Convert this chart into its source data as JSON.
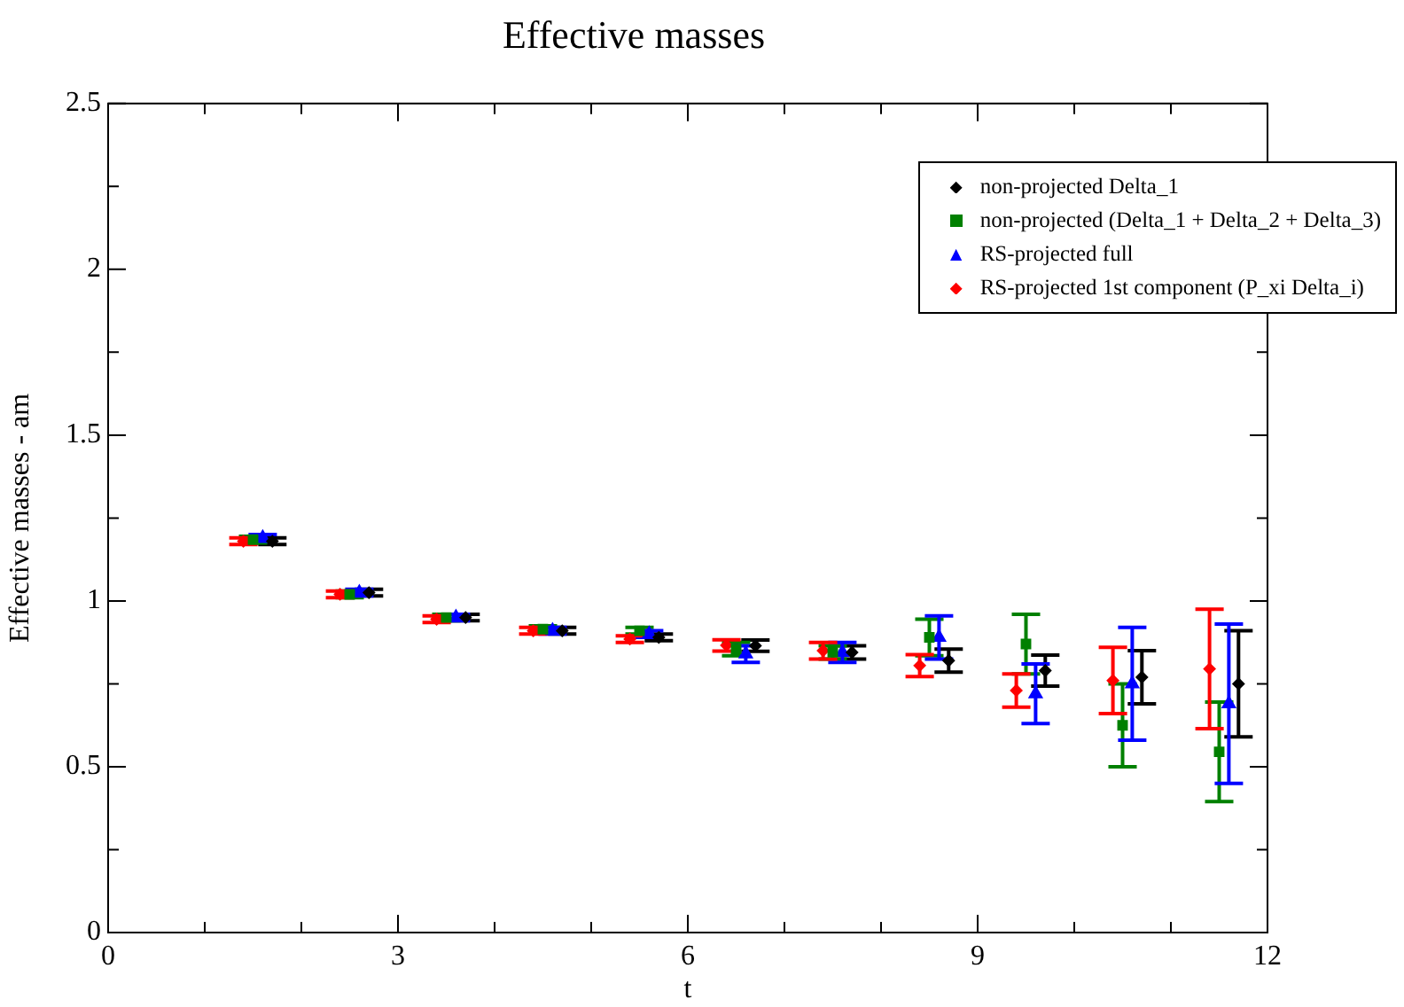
{
  "chart_data": {
    "type": "scatter",
    "title": "Effective masses",
    "xlabel": "t",
    "ylabel": "Effective masses - am",
    "xlim": [
      0,
      12
    ],
    "ylim": [
      0,
      2.5
    ],
    "xticks": [
      0,
      {
        "value": 1,
        "label": null
      },
      {
        "value": 2,
        "label": null
      },
      3,
      {
        "value": 4,
        "label": null
      },
      {
        "value": 5,
        "label": null
      },
      6,
      {
        "value": 7,
        "label": null
      },
      {
        "value": 8,
        "label": null
      },
      9,
      {
        "value": 10,
        "label": null
      },
      {
        "value": 11,
        "label": null
      },
      12
    ],
    "yticks": [
      0,
      {
        "value": 0.25,
        "label": null
      },
      0.5,
      {
        "value": 0.75,
        "label": null
      },
      1,
      {
        "value": 1.25,
        "label": null
      },
      1.5,
      {
        "value": 1.75,
        "label": null
      },
      2,
      {
        "value": 2.25,
        "label": null
      },
      2.5
    ],
    "grid": false,
    "legend": "top right",
    "series": [
      {
        "name": "non-projected Delta_1",
        "color": "#000000",
        "marker": "diamond",
        "x": [
          1.7,
          2.7,
          3.7,
          4.7,
          5.7,
          6.7,
          7.7,
          8.7,
          9.7,
          10.7,
          11.7
        ],
        "values": [
          1.18,
          1.025,
          0.95,
          0.91,
          0.89,
          0.865,
          0.845,
          0.82,
          0.79,
          0.77,
          0.75
        ],
        "errors": [
          0.01,
          0.01,
          0.01,
          0.01,
          0.01,
          0.017,
          0.02,
          0.035,
          0.047,
          0.08,
          0.16
        ]
      },
      {
        "name": "non-projected (Delta_1 + Delta_2 + Delta_3)",
        "color": "#008000",
        "marker": "square",
        "x": [
          1.5,
          2.5,
          3.5,
          4.5,
          5.5,
          6.5,
          7.5,
          8.5,
          9.5,
          10.5,
          11.5
        ],
        "values": [
          1.185,
          1.02,
          0.95,
          0.915,
          0.91,
          0.855,
          0.845,
          0.89,
          0.87,
          0.625,
          0.545
        ],
        "errors": [
          0.01,
          0.01,
          0.01,
          0.01,
          0.01,
          0.02,
          0.02,
          0.055,
          0.09,
          0.125,
          0.15
        ]
      },
      {
        "name": "RS-projected full",
        "color": "#0000ff",
        "marker": "triangle",
        "x": [
          1.6,
          2.6,
          3.6,
          4.6,
          5.6,
          6.6,
          7.6,
          8.6,
          9.6,
          10.6,
          11.6
        ],
        "values": [
          1.19,
          1.025,
          0.95,
          0.91,
          0.9,
          0.84,
          0.845,
          0.89,
          0.72,
          0.75,
          0.69
        ],
        "errors": [
          0.01,
          0.01,
          0.01,
          0.01,
          0.01,
          0.025,
          0.03,
          0.065,
          0.09,
          0.17,
          0.24
        ]
      },
      {
        "name": "RS-projected 1st component (P_xi Delta_i)",
        "color": "#ff0000",
        "marker": "diamond",
        "x": [
          1.4,
          2.4,
          3.4,
          4.4,
          5.4,
          6.4,
          7.4,
          8.4,
          9.4,
          10.4,
          11.4
        ],
        "values": [
          1.18,
          1.02,
          0.945,
          0.91,
          0.885,
          0.866,
          0.85,
          0.805,
          0.73,
          0.76,
          0.795
        ],
        "errors": [
          0.01,
          0.01,
          0.01,
          0.01,
          0.01,
          0.017,
          0.025,
          0.033,
          0.05,
          0.1,
          0.18
        ]
      }
    ]
  }
}
